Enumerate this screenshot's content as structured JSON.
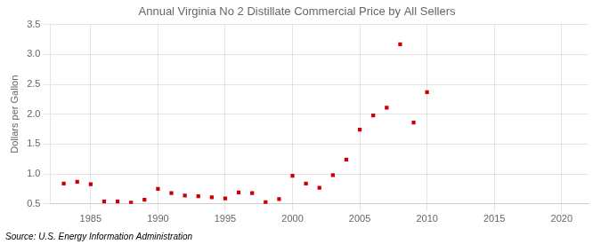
{
  "chart_data": {
    "type": "scatter",
    "title": "Annual Virginia No 2 Distillate Commercial Price by All Sellers",
    "ylabel": "Dollars per Gallon",
    "source": "Source: U.S. Energy Information Administration",
    "x": [
      1983,
      1984,
      1985,
      1986,
      1987,
      1988,
      1989,
      1990,
      1991,
      1992,
      1993,
      1994,
      1995,
      1996,
      1997,
      1998,
      1999,
      2000,
      2001,
      2002,
      2003,
      2004,
      2005,
      2006,
      2007,
      2008,
      2009,
      2010
    ],
    "values": [
      0.84,
      0.87,
      0.83,
      0.54,
      0.54,
      0.52,
      0.57,
      0.75,
      0.68,
      0.64,
      0.63,
      0.61,
      0.59,
      0.69,
      0.68,
      0.53,
      0.58,
      0.97,
      0.84,
      0.77,
      0.98,
      1.24,
      1.74,
      1.98,
      2.11,
      3.17,
      1.86,
      2.37
    ],
    "color": "#cc0000",
    "marker": "square",
    "xlim": [
      1982,
      2022
    ],
    "ylim": [
      0.5,
      3.5
    ],
    "xticks": [
      1985,
      1990,
      1995,
      2000,
      2005,
      2010,
      2015,
      2020
    ],
    "yticks": [
      0.5,
      {
        "value": 1.0,
        "label": "1.0"
      },
      1.5,
      {
        "value": 2.0,
        "label": "2.0"
      },
      2.5,
      {
        "value": 3.0,
        "label": "3.0"
      },
      3.5
    ],
    "grid": true
  }
}
